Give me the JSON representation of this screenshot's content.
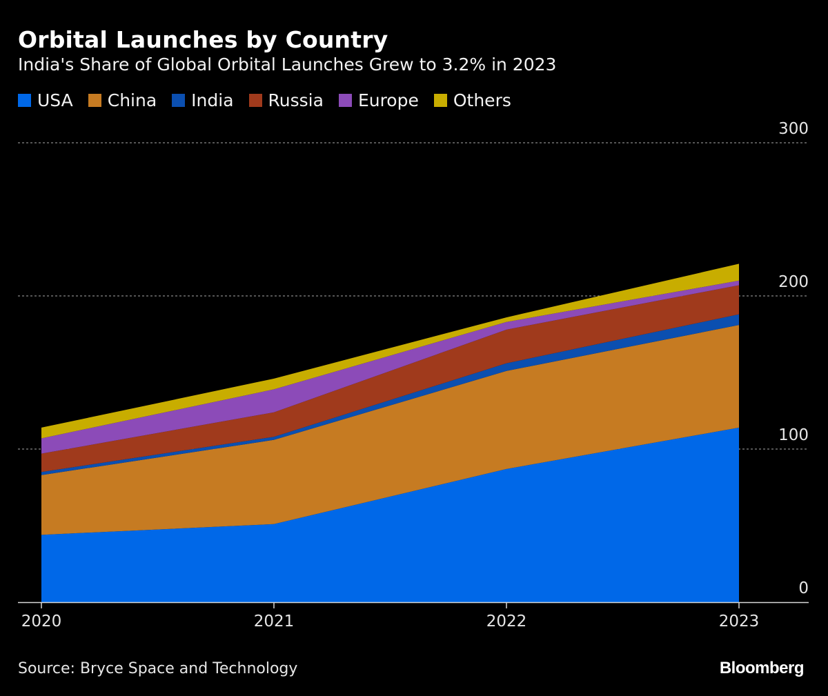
{
  "title": "Orbital Launches by Country",
  "subtitle": "India's Share of Global Orbital Launches Grew to 3.2% in 2023",
  "source": "Source: Bryce Space and Technology",
  "brand": "Bloomberg",
  "chart_data": {
    "type": "area",
    "stacked": true,
    "title": "Orbital Launches by Country",
    "subtitle": "India's Share of Global Orbital Launches Grew to 3.2% in 2023",
    "x": [
      "2020",
      "2021",
      "2022",
      "2023"
    ],
    "ylim": [
      0,
      300
    ],
    "yticks": [
      0,
      100,
      200,
      300
    ],
    "ytick_labels": [
      "0",
      "100",
      "200",
      "300"
    ],
    "y_axis_side": "right",
    "grid": "horizontal-dashed",
    "legend_position": "top-left",
    "series": [
      {
        "name": "USA",
        "color": "#0068e8",
        "values": [
          44,
          51,
          87,
          114
        ]
      },
      {
        "name": "China",
        "color": "#c67b22",
        "values": [
          39,
          55,
          64,
          67
        ]
      },
      {
        "name": "India",
        "color": "#0b4fb0",
        "values": [
          2,
          2,
          5,
          7
        ]
      },
      {
        "name": "Russia",
        "color": "#a03a1c",
        "values": [
          12,
          16,
          22,
          19
        ]
      },
      {
        "name": "Europe",
        "color": "#8c4bb8",
        "values": [
          10,
          15,
          5,
          3
        ]
      },
      {
        "name": "Others",
        "color": "#c8ad00",
        "values": [
          7,
          7,
          3,
          11
        ]
      }
    ]
  }
}
